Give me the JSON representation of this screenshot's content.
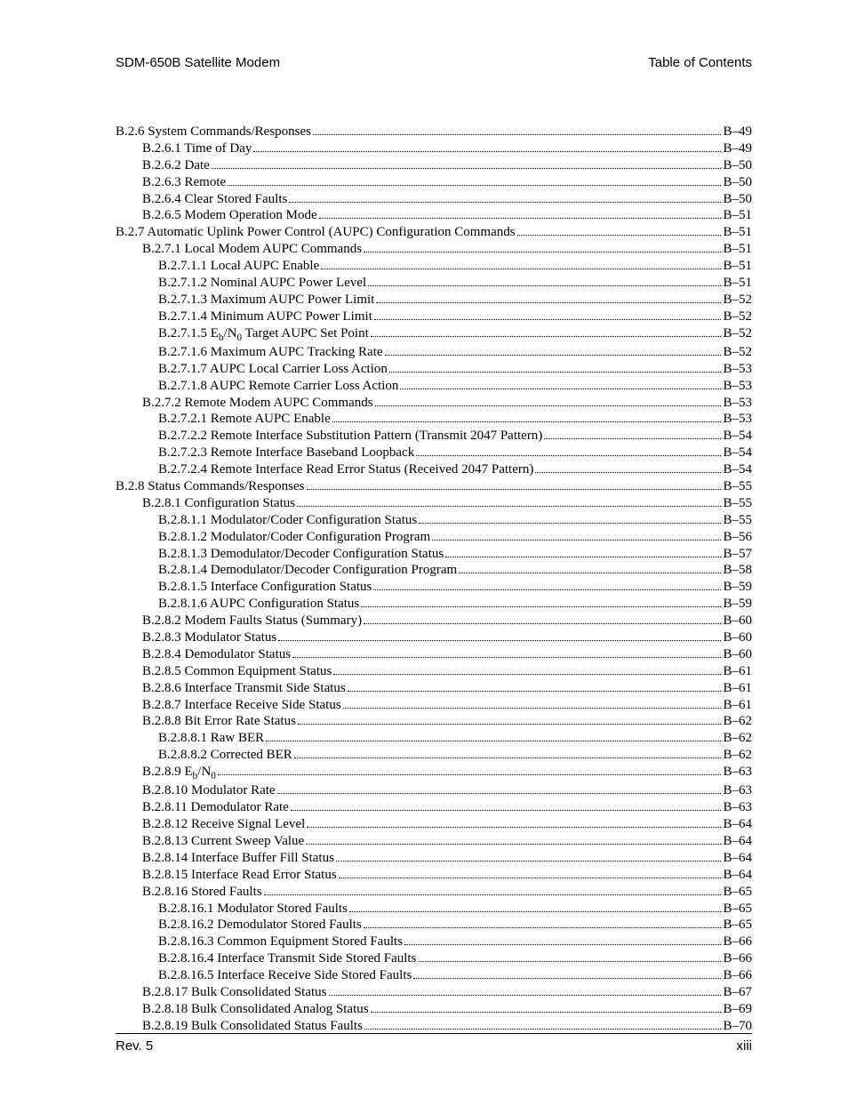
{
  "header": {
    "left": "SDM-650B Satellite Modem",
    "right": "Table of Contents"
  },
  "footer": {
    "left": "Rev. 5",
    "right": "xiii"
  },
  "toc": [
    {
      "indent": 0,
      "label": "B.2.6  System Commands/Responses",
      "page": "B–49"
    },
    {
      "indent": 1,
      "label": "B.2.6.1  Time of Day",
      "page": "B–49"
    },
    {
      "indent": 1,
      "label": "B.2.6.2  Date",
      "page": "B–50"
    },
    {
      "indent": 1,
      "label": "B.2.6.3  Remote",
      "page": "B–50"
    },
    {
      "indent": 1,
      "label": "B.2.6.4  Clear Stored Faults",
      "page": "B–50"
    },
    {
      "indent": 1,
      "label": "B.2.6.5  Modem Operation Mode",
      "page": "B–51"
    },
    {
      "indent": 0,
      "label": "B.2.7  Automatic Uplink Power Control (AUPC) Configuration Commands",
      "page": "B–51"
    },
    {
      "indent": 1,
      "label": "B.2.7.1  Local Modem AUPC Commands",
      "page": "B–51"
    },
    {
      "indent": 2,
      "label": "B.2.7.1.1  Local AUPC Enable",
      "page": "B–51"
    },
    {
      "indent": 2,
      "label": "B.2.7.1.2  Nominal AUPC Power Level",
      "page": "B–51"
    },
    {
      "indent": 2,
      "label": "B.2.7.1.3  Maximum AUPC Power Limit",
      "page": "B–52"
    },
    {
      "indent": 2,
      "label": "B.2.7.1.4  Minimum AUPC Power Limit",
      "page": "B–52"
    },
    {
      "indent": 2,
      "label_html": "B.2.7.1.5  E<span class=\"sub\">b</span>/N<span class=\"sub\">0</span> Target AUPC Set Point",
      "page": "B–52"
    },
    {
      "indent": 2,
      "label": "B.2.7.1.6  Maximum AUPC Tracking Rate",
      "page": "B–52"
    },
    {
      "indent": 2,
      "label": "B.2.7.1.7  AUPC Local Carrier Loss Action",
      "page": "B–53"
    },
    {
      "indent": 2,
      "label": "B.2.7.1.8  AUPC Remote Carrier Loss Action",
      "page": "B–53"
    },
    {
      "indent": 1,
      "label": "B.2.7.2  Remote Modem AUPC Commands",
      "page": "B–53"
    },
    {
      "indent": 2,
      "label": "B.2.7.2.1  Remote AUPC Enable",
      "page": "B–53"
    },
    {
      "indent": 2,
      "label": "B.2.7.2.2  Remote Interface Substitution Pattern (Transmit 2047 Pattern)",
      "page": "B–54"
    },
    {
      "indent": 2,
      "label": "B.2.7.2.3  Remote Interface Baseband Loopback",
      "page": "B–54"
    },
    {
      "indent": 2,
      "label": "B.2.7.2.4  Remote Interface Read Error Status (Received 2047 Pattern)",
      "page": "B–54"
    },
    {
      "indent": 0,
      "label": "B.2.8  Status Commands/Responses",
      "page": "B–55"
    },
    {
      "indent": 1,
      "label": "B.2.8.1  Configuration Status",
      "page": "B–55"
    },
    {
      "indent": 2,
      "label": "B.2.8.1.1  Modulator/Coder Configuration Status",
      "page": "B–55"
    },
    {
      "indent": 2,
      "label": "B.2.8.1.2  Modulator/Coder Configuration Program",
      "page": "B–56"
    },
    {
      "indent": 2,
      "label": "B.2.8.1.3  Demodulator/Decoder Configuration Status",
      "page": "B–57"
    },
    {
      "indent": 2,
      "label": "B.2.8.1.4  Demodulator/Decoder Configuration Program",
      "page": "B–58"
    },
    {
      "indent": 2,
      "label": "B.2.8.1.5  Interface Configuration Status",
      "page": "B–59"
    },
    {
      "indent": 2,
      "label": "B.2.8.1.6  AUPC Configuration Status",
      "page": "B–59"
    },
    {
      "indent": 1,
      "label": "B.2.8.2  Modem Faults Status (Summary)",
      "page": "B–60"
    },
    {
      "indent": 1,
      "label": "B.2.8.3  Modulator Status",
      "page": "B–60"
    },
    {
      "indent": 1,
      "label": "B.2.8.4  Demodulator Status",
      "page": "B–60"
    },
    {
      "indent": 1,
      "label": "B.2.8.5  Common Equipment Status",
      "page": "B–61"
    },
    {
      "indent": 1,
      "label": "B.2.8.6  Interface Transmit Side Status",
      "page": "B–61"
    },
    {
      "indent": 1,
      "label": "B.2.8.7  Interface Receive Side Status",
      "page": "B–61"
    },
    {
      "indent": 1,
      "label": "B.2.8.8  Bit Error Rate Status",
      "page": "B–62"
    },
    {
      "indent": 2,
      "label": "B.2.8.8.1  Raw BER",
      "page": "B–62"
    },
    {
      "indent": 2,
      "label": "B.2.8.8.2  Corrected BER",
      "page": "B–62"
    },
    {
      "indent": 1,
      "label_html": "B.2.8.9  E<span class=\"sub\">b</span>/N<span class=\"sub\">0</span>",
      "page": "B–63"
    },
    {
      "indent": 1,
      "label": "B.2.8.10  Modulator Rate",
      "page": "B–63"
    },
    {
      "indent": 1,
      "label": "B.2.8.11  Demodulator Rate",
      "page": "B–63"
    },
    {
      "indent": 1,
      "label": "B.2.8.12  Receive Signal Level",
      "page": "B–64"
    },
    {
      "indent": 1,
      "label": "B.2.8.13  Current Sweep Value",
      "page": "B–64"
    },
    {
      "indent": 1,
      "label": "B.2.8.14  Interface Buffer Fill Status",
      "page": "B–64"
    },
    {
      "indent": 1,
      "label": "B.2.8.15  Interface Read Error Status",
      "page": "B–64"
    },
    {
      "indent": 1,
      "label": "B.2.8.16  Stored Faults",
      "page": "B–65"
    },
    {
      "indent": 2,
      "label": "B.2.8.16.1  Modulator Stored Faults",
      "page": "B–65"
    },
    {
      "indent": 2,
      "label": "B.2.8.16.2  Demodulator Stored Faults",
      "page": "B–65"
    },
    {
      "indent": 2,
      "label": "B.2.8.16.3  Common Equipment Stored Faults",
      "page": "B–66"
    },
    {
      "indent": 2,
      "label": "B.2.8.16.4  Interface Transmit Side Stored Faults",
      "page": "B–66"
    },
    {
      "indent": 2,
      "label": "B.2.8.16.5  Interface Receive Side Stored Faults",
      "page": "B–66"
    },
    {
      "indent": 1,
      "label": "B.2.8.17  Bulk Consolidated Status",
      "page": "B–67"
    },
    {
      "indent": 1,
      "label": "B.2.8.18  Bulk Consolidated Analog Status",
      "page": "B–69"
    },
    {
      "indent": 1,
      "label": "B.2.8.19  Bulk Consolidated Status Faults",
      "page": "B–70"
    }
  ]
}
